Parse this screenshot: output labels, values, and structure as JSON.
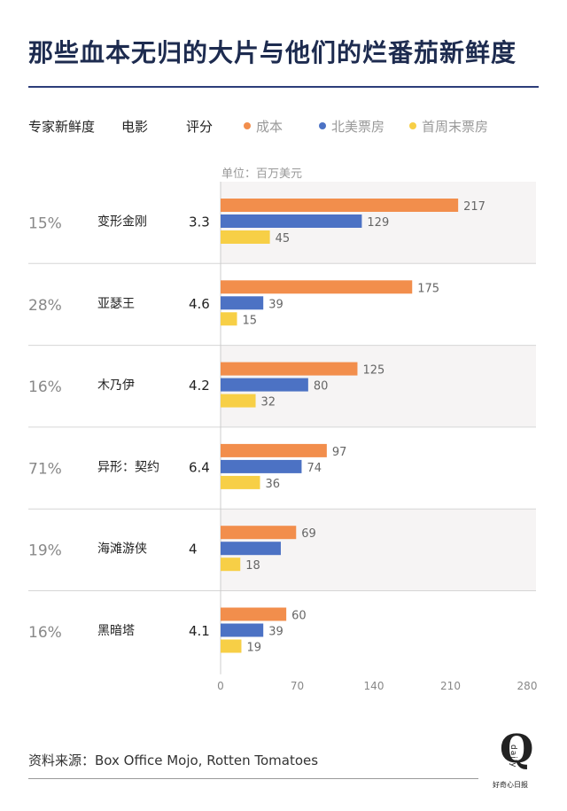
{
  "title": "那些血本无归的大片与他们的烂番茄新鲜度",
  "headers": {
    "freshness": "专家新鲜度",
    "movie": "电影",
    "score": "评分"
  },
  "unit": "单位：百万美元",
  "source": "资料来源：Box Office Mojo, Rotten Tomatoes",
  "logo": {
    "letter": "Q",
    "word": "daily",
    "sub": "好奇心日报"
  },
  "colors": {
    "cost": "#f28e4c",
    "na": "#4c72c4",
    "opening": "#f7cf46"
  },
  "chart_data": {
    "type": "bar",
    "orientation": "horizontal",
    "categories": [
      "变形金刚",
      "亚瑟王",
      "木乃伊",
      "异形：契约",
      "海滩游侠",
      "黑暗塔"
    ],
    "freshness": [
      "15%",
      "28%",
      "16%",
      "71%",
      "19%",
      "16%"
    ],
    "scores": [
      "3.3",
      "4.6",
      "4.2",
      "6.4",
      "4",
      "4.1"
    ],
    "series": [
      {
        "name": "成本",
        "values": [
          217,
          175,
          125,
          97,
          69,
          60
        ]
      },
      {
        "name": "北美票房",
        "values": [
          129,
          39,
          80,
          74,
          55,
          39
        ]
      },
      {
        "name": "首周末票房",
        "values": [
          45,
          15,
          32,
          36,
          18,
          19
        ]
      }
    ],
    "series_labels_shown": [
      [
        217,
        175,
        125,
        97,
        69,
        60
      ],
      [
        129,
        39,
        80,
        74,
        null,
        39
      ],
      [
        45,
        15,
        32,
        36,
        18,
        19
      ]
    ],
    "xlim": [
      0,
      280
    ],
    "xticks": [
      0,
      70,
      140,
      210,
      280
    ],
    "title": "那些血本无归的大片与他们的烂番茄新鲜度"
  }
}
